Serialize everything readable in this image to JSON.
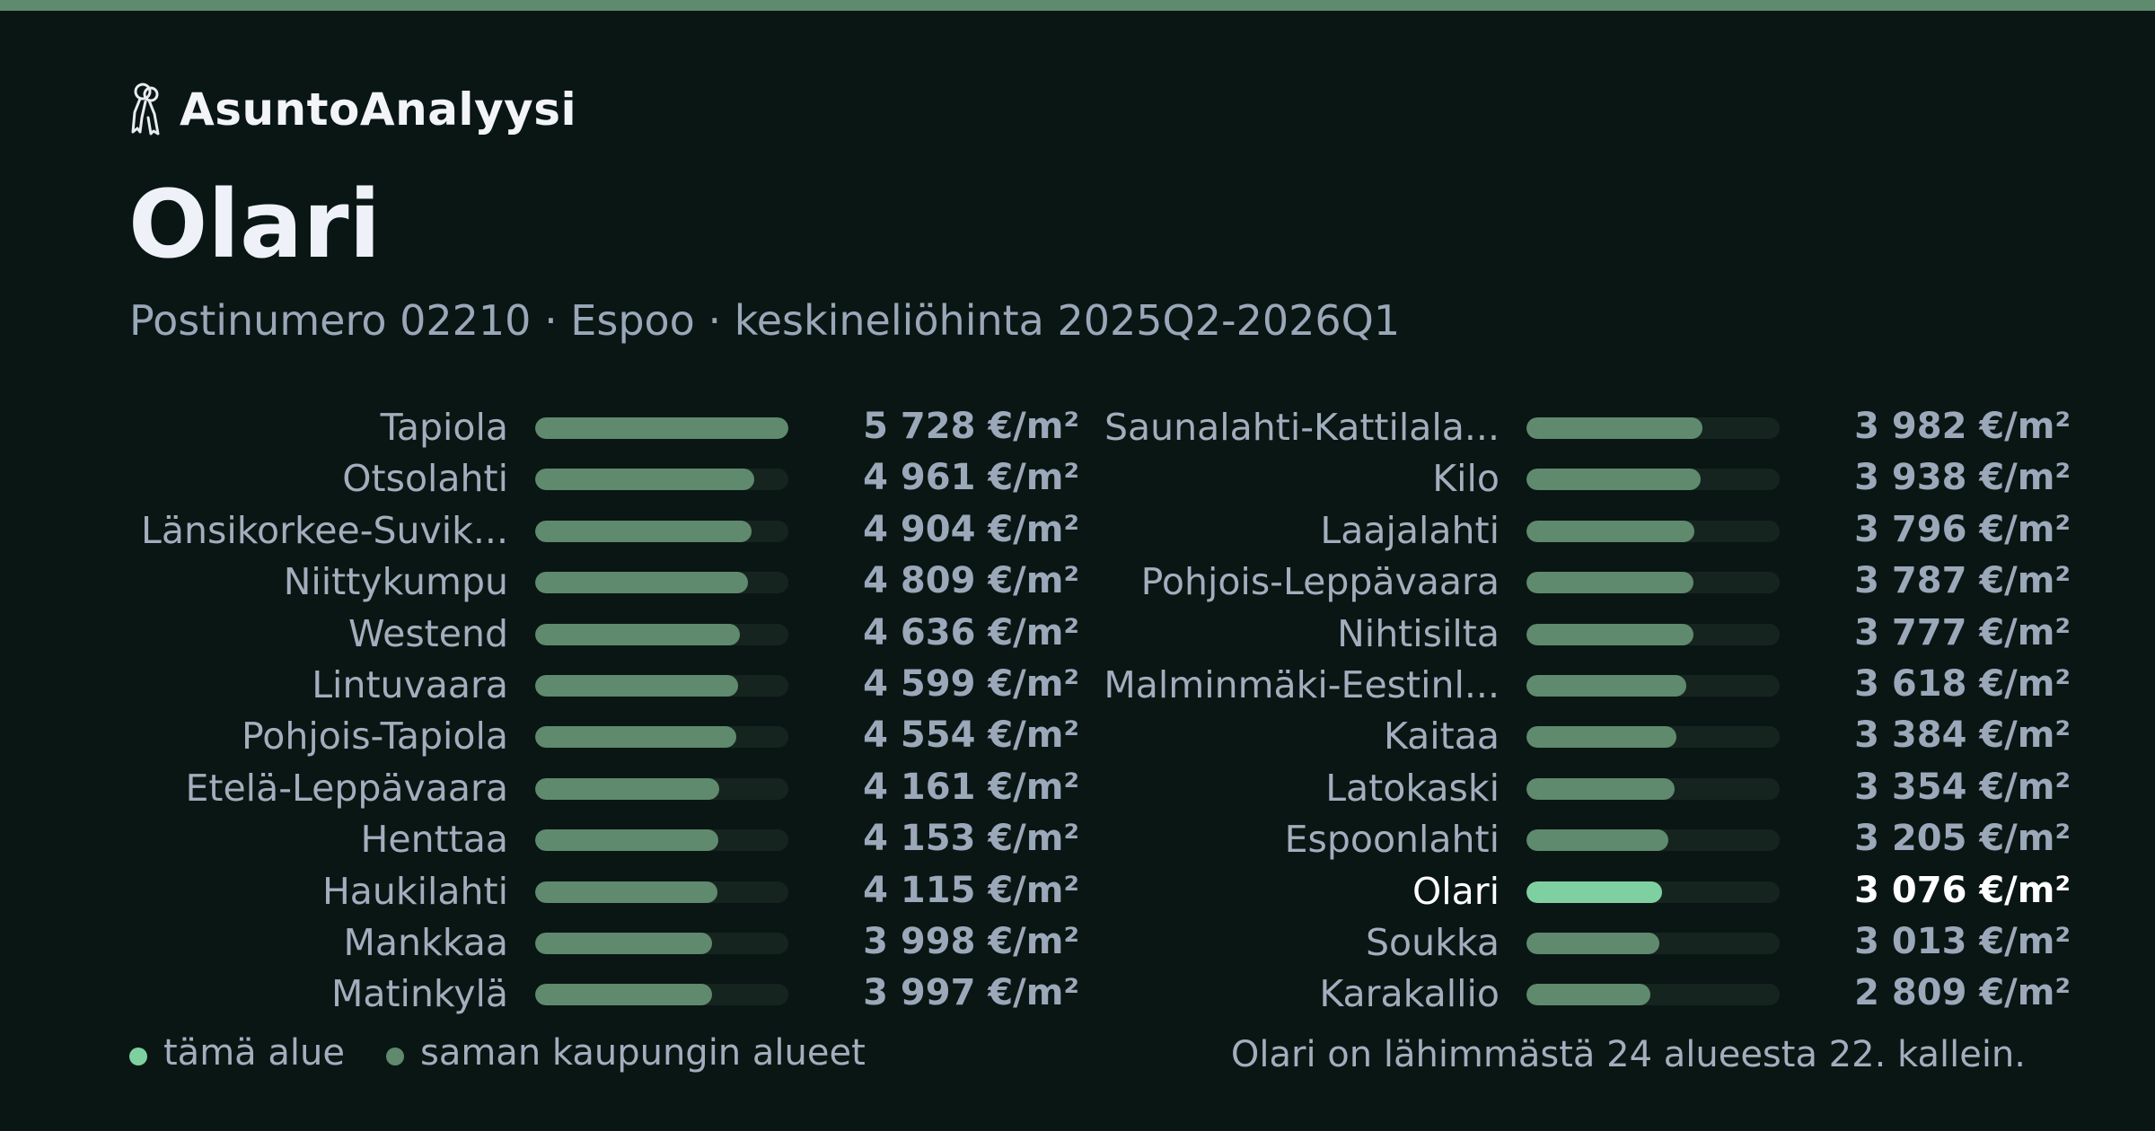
{
  "header": {
    "brand_icon": "keys-icon",
    "brand_name": "AsuntoAnalyysi",
    "title": "Olari",
    "subtitle": "Postinumero 02210 · Espoo · keskineliöhinta 2025Q2-2026Q1"
  },
  "colors": {
    "accent": "#5f8a6d",
    "highlight": "#7ed0a0",
    "background": "#0a1614"
  },
  "chart_data": {
    "type": "bar",
    "orientation": "horizontal",
    "unit": "€/m²",
    "highlight": "Olari",
    "xlim": [
      0,
      5728
    ],
    "categories": [
      "Tapiola",
      "Otsolahti",
      "Länsikorkee-Suvik...",
      "Niittykumpu",
      "Westend",
      "Lintuvaara",
      "Pohjois-Tapiola",
      "Etelä-Leppävaara",
      "Henttaa",
      "Haukilahti",
      "Mankkaa",
      "Matinkylä",
      "Saunalahti-Kattilala...",
      "Kilo",
      "Laajalahti",
      "Pohjois-Leppävaara",
      "Nihtisilta",
      "Malminmäki-Eestinl...",
      "Kaitaa",
      "Latokaski",
      "Espoonlahti",
      "Olari",
      "Soukka",
      "Karakallio"
    ],
    "values": [
      5728,
      4961,
      4904,
      4809,
      4636,
      4599,
      4554,
      4161,
      4153,
      4115,
      3998,
      3997,
      3982,
      3938,
      3796,
      3787,
      3777,
      3618,
      3384,
      3354,
      3205,
      3076,
      3013,
      2809
    ],
    "value_labels": [
      "5 728 €/m²",
      "4 961 €/m²",
      "4 904 €/m²",
      "4 809 €/m²",
      "4 636 €/m²",
      "4 599 €/m²",
      "4 554 €/m²",
      "4 161 €/m²",
      "4 153 €/m²",
      "4 115 €/m²",
      "3 998 €/m²",
      "3 997 €/m²",
      "3 982 €/m²",
      "3 938 €/m²",
      "3 796 €/m²",
      "3 787 €/m²",
      "3 777 €/m²",
      "3 618 €/m²",
      "3 384 €/m²",
      "3 354 €/m²",
      "3 205 €/m²",
      "3 076 €/m²",
      "3 013 €/m²",
      "2 809 €/m²"
    ]
  },
  "legend": {
    "this_area": "tämä alue",
    "same_city": "saman kaupungin alueet"
  },
  "rank_note": "Olari on lähimmästä 24 alueesta 22. kallein."
}
